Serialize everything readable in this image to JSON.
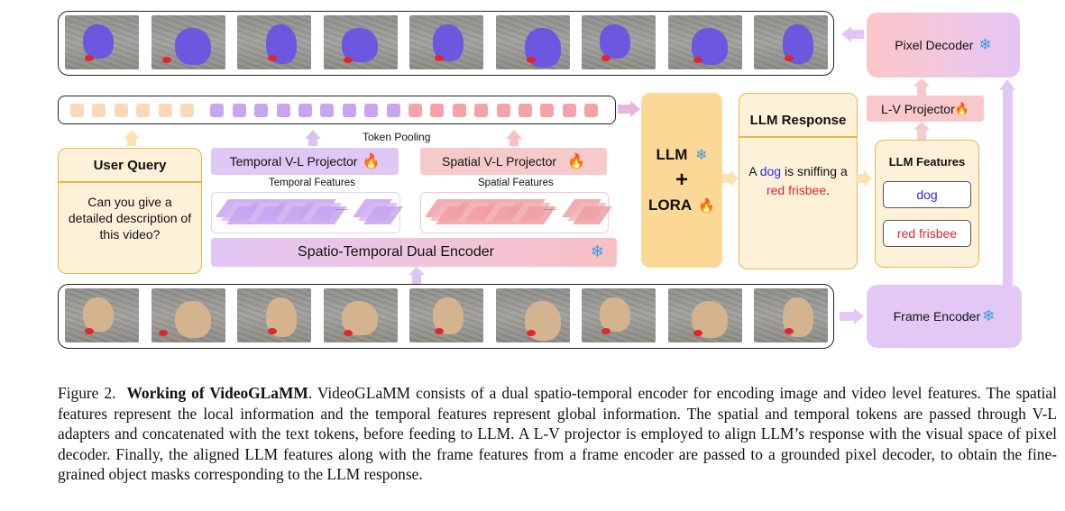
{
  "figure": {
    "output_frames_count": 9,
    "input_frames_count": 9,
    "token_pooling_label": "Token Pooling",
    "user_query": {
      "title": "User Query",
      "text": "Can you give a detailed description of this video?"
    },
    "temporal_projector": {
      "label": "Temporal V-L Projector",
      "icon": "fire-icon"
    },
    "spatial_projector": {
      "label": "Spatial V-L Projector",
      "icon": "fire-icon"
    },
    "temporal_features_label": "Temporal Features",
    "spatial_features_label": "Spatial Features",
    "features_ellipsis": "......",
    "dual_encoder": {
      "label": "Spatio-Temporal Dual Encoder",
      "icon": "snowflake-icon"
    },
    "llm_block": {
      "llm": "LLM",
      "plus": "+",
      "lora": "LORA",
      "llm_icon": "snowflake-icon",
      "lora_icon": "fire-icon"
    },
    "llm_response": {
      "title": "LLM Response",
      "prefix": "A",
      "word_dog": "dog",
      "middle": "is sniffing a",
      "word_frisbee": "red frisbee",
      "suffix": "."
    },
    "llm_features": {
      "title": "LLM Features",
      "items": [
        "dog",
        "red frisbee"
      ]
    },
    "lv_projector": {
      "label": "L-V Projector",
      "icon": "fire-icon"
    },
    "pixel_decoder": {
      "label": "Pixel Decoder",
      "icon": "snowflake-icon"
    },
    "frame_encoder": {
      "label": "Frame Encoder",
      "icon": "snowflake-icon"
    },
    "colors": {
      "mask_purple": "#6b57e0",
      "token_orange": "#fbd8b8",
      "token_purple": "#c9a4f0",
      "token_pink": "#f5a3a8",
      "dog_text": "#2b2be0",
      "frisbee_text": "#e0262c"
    }
  },
  "caption": {
    "prefix": "Figure 2.",
    "title": "Working of VideoGLaMM",
    "body": ". VideoGLaMM consists of a dual spatio-temporal encoder for encoding image and video level features. The spatial features represent the local information and the temporal features represent global information. The spatial and temporal tokens are passed through V-L adapters and concatenated with the text tokens, before feeding to LLM. A L-V projector is employed to align LLM’s response with the visual space of pixel decoder. Finally, the aligned LLM features along with the frame features from a frame encoder are passed to a grounded pixel decoder, to obtain the fine-grained object masks corresponding to the LLM response."
  }
}
